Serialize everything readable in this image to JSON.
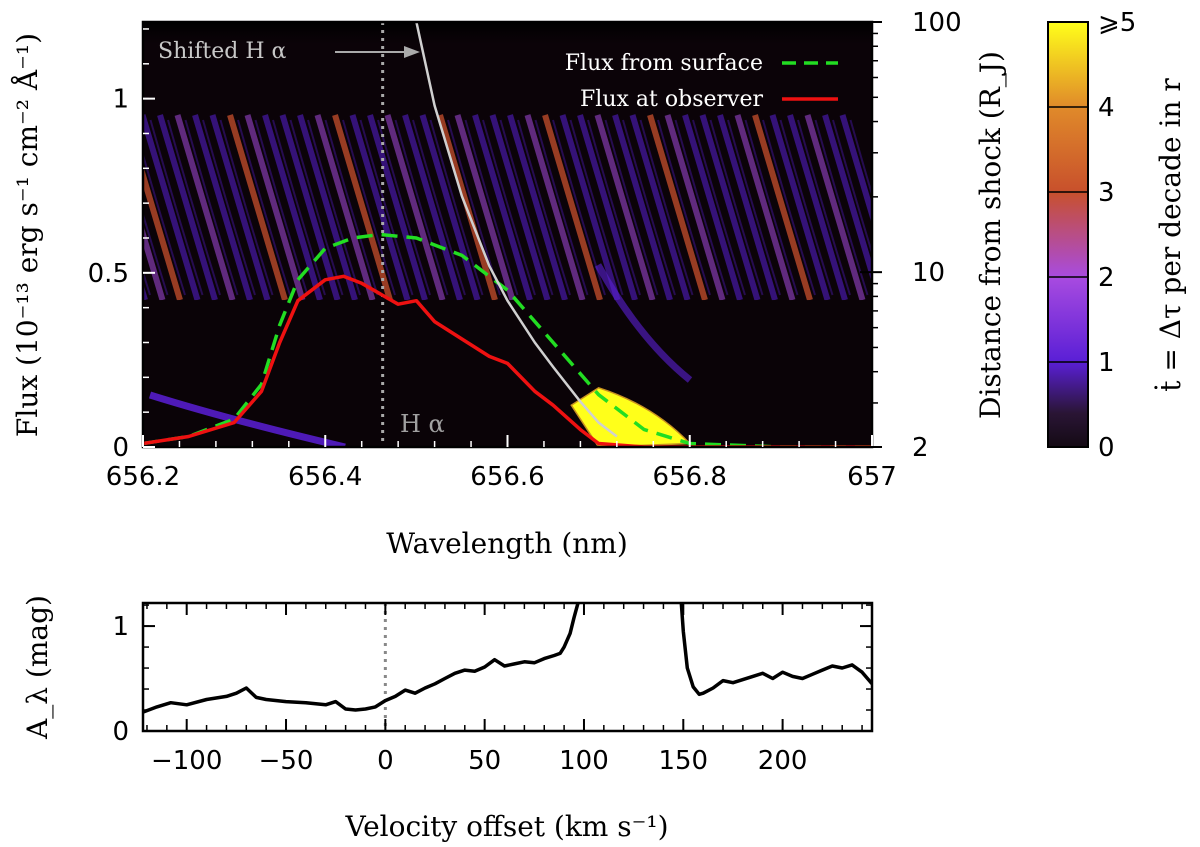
{
  "chart_data": [
    {
      "type": "heatmap",
      "panel": "top",
      "xlabel": "Wavelength (nm)",
      "ylabel": "Flux (10⁻¹³ erg s⁻¹ cm⁻² Å⁻¹)",
      "y2label": "Distance from shock (R_J)",
      "xlim": [
        656.2,
        657.0
      ],
      "ylim": [
        0,
        1.22
      ],
      "y2_scale": "log",
      "y2lim": [
        2,
        100
      ],
      "x_ticks": [
        "656.2",
        "656.4",
        "656.6",
        "656.8",
        "657"
      ],
      "x_tick_values": [
        656.2,
        656.4,
        656.6,
        656.8,
        657.0
      ],
      "y_ticks": [
        "0",
        "0.5",
        "1"
      ],
      "y_tick_values": [
        0,
        0.5,
        1
      ],
      "y2_ticks": [
        "2",
        "10",
        "100"
      ],
      "y2_tick_values": [
        2,
        10,
        100
      ],
      "colorbar": {
        "label": "ṫ = Δτ per decade in r",
        "ticks": [
          "0",
          "1",
          "2",
          "3",
          "4",
          "⩾5"
        ],
        "tick_values": [
          0,
          1,
          2,
          3,
          4,
          5
        ],
        "colors": [
          "#140a14",
          "#5a1fd6",
          "#a84be0",
          "#c8502c",
          "#e08a2a",
          "#ffff1a"
        ]
      },
      "legend_placement": "top-right",
      "series": [
        {
          "name": "Flux from surface",
          "color": "#22dd22",
          "style": "dashed",
          "x": [
            656.2,
            656.25,
            656.3,
            656.33,
            656.35,
            656.37,
            656.4,
            656.43,
            656.46,
            656.5,
            656.55,
            656.6,
            656.65,
            656.7,
            656.75,
            656.8,
            656.9,
            657.0
          ],
          "y": [
            0.01,
            0.03,
            0.08,
            0.18,
            0.35,
            0.48,
            0.57,
            0.6,
            0.61,
            0.6,
            0.55,
            0.45,
            0.3,
            0.15,
            0.05,
            0.01,
            0.0,
            0.0
          ]
        },
        {
          "name": "Flux at observer",
          "color": "#ee1111",
          "style": "solid",
          "x": [
            656.2,
            656.25,
            656.3,
            656.33,
            656.35,
            656.37,
            656.4,
            656.42,
            656.44,
            656.46,
            656.48,
            656.5,
            656.52,
            656.55,
            656.58,
            656.6,
            656.63,
            656.65,
            656.68,
            656.7,
            656.75,
            656.8,
            657.0
          ],
          "y": [
            0.01,
            0.03,
            0.07,
            0.16,
            0.3,
            0.42,
            0.48,
            0.49,
            0.47,
            0.44,
            0.41,
            0.42,
            0.36,
            0.31,
            0.26,
            0.24,
            0.16,
            0.12,
            0.05,
            0.01,
            0.0,
            0.0,
            0.0
          ]
        },
        {
          "name": "Shifted Hα track",
          "color": "#d0d0d0",
          "style": "solid",
          "x": [
            656.5,
            656.52,
            656.55,
            656.58,
            656.6,
            656.63,
            656.65,
            656.68,
            656.7,
            656.72
          ],
          "y": [
            1.22,
            0.98,
            0.72,
            0.52,
            0.42,
            0.3,
            0.23,
            0.13,
            0.07,
            0.03
          ]
        }
      ],
      "reference_line": {
        "x": 656.463,
        "label": "H α",
        "style": "dotted",
        "color": "#aaaaaa"
      },
      "annotation": {
        "text": "Shifted H α",
        "arrow_to_x": 656.5,
        "y": 1.1
      }
    },
    {
      "type": "line",
      "panel": "bottom",
      "xlabel": "Velocity offset (km s⁻¹)",
      "ylabel": "A_λ (mag)",
      "xlim": [
        -122,
        245
      ],
      "ylim": [
        0,
        1.22
      ],
      "x_ticks": [
        "−100",
        "−50",
        "0",
        "50",
        "100",
        "150",
        "200"
      ],
      "x_tick_values": [
        -100,
        -50,
        0,
        50,
        100,
        150,
        200
      ],
      "y_ticks": [
        "0",
        "1"
      ],
      "y_tick_values": [
        0,
        1
      ],
      "reference_line": {
        "x": 0,
        "style": "dotted",
        "color": "#888888"
      },
      "series": [
        {
          "name": "",
          "color": "#000000",
          "x": [
            -122,
            -115,
            -108,
            -100,
            -90,
            -80,
            -75,
            -70,
            -65,
            -60,
            -50,
            -40,
            -30,
            -25,
            -20,
            -15,
            -10,
            -5,
            0,
            5,
            10,
            15,
            20,
            25,
            30,
            35,
            40,
            45,
            50,
            55,
            60,
            65,
            70,
            75,
            80,
            85,
            88,
            90,
            93,
            95,
            97
          ],
          "y": [
            0.18,
            0.23,
            0.27,
            0.25,
            0.3,
            0.33,
            0.36,
            0.41,
            0.32,
            0.3,
            0.28,
            0.27,
            0.25,
            0.28,
            0.21,
            0.2,
            0.21,
            0.23,
            0.29,
            0.33,
            0.39,
            0.36,
            0.41,
            0.45,
            0.5,
            0.55,
            0.58,
            0.57,
            0.61,
            0.68,
            0.62,
            0.64,
            0.66,
            0.65,
            0.69,
            0.72,
            0.74,
            0.8,
            0.93,
            1.08,
            1.22
          ]
        },
        {
          "name": "",
          "color": "#000000",
          "x": [
            149,
            150,
            152,
            155,
            158,
            160,
            165,
            170,
            175,
            180,
            185,
            190,
            195,
            200,
            205,
            210,
            215,
            220,
            225,
            230,
            235,
            240,
            245
          ],
          "y": [
            1.22,
            0.95,
            0.6,
            0.42,
            0.35,
            0.36,
            0.41,
            0.48,
            0.46,
            0.49,
            0.52,
            0.55,
            0.5,
            0.56,
            0.52,
            0.5,
            0.54,
            0.58,
            0.62,
            0.6,
            0.63,
            0.56,
            0.45
          ]
        }
      ]
    }
  ]
}
